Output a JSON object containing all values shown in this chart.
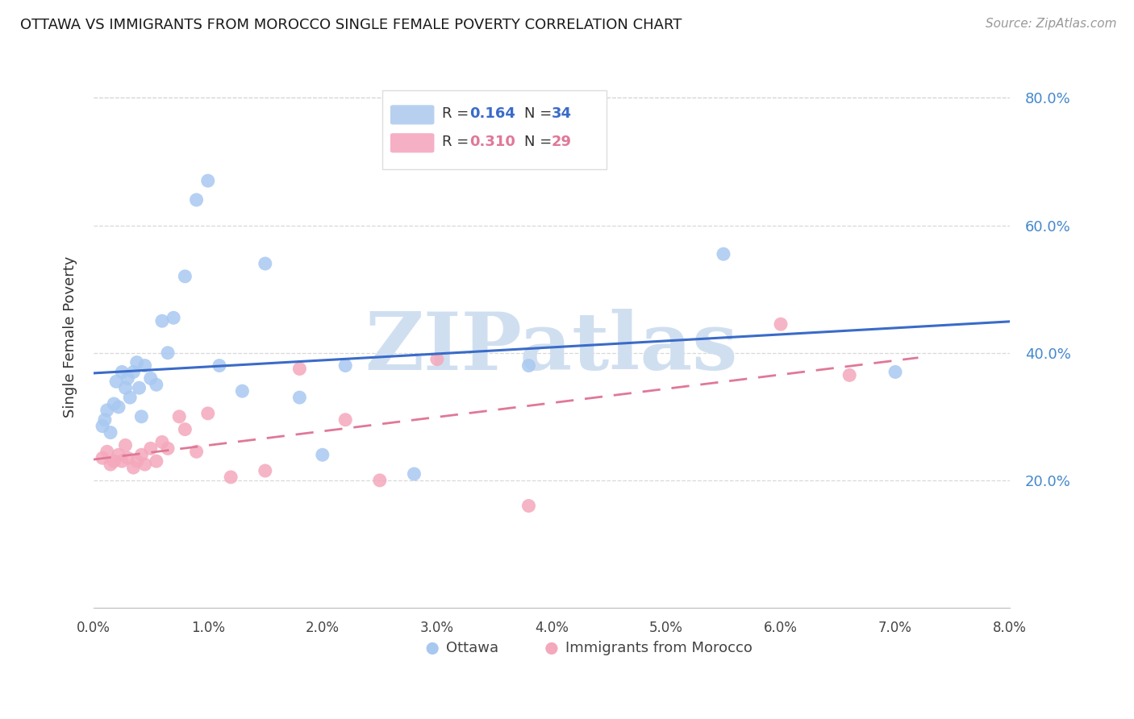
{
  "title": "OTTAWA VS IMMIGRANTS FROM MOROCCO SINGLE FEMALE POVERTY CORRELATION CHART",
  "source": "Source: ZipAtlas.com",
  "ylabel": "Single Female Poverty",
  "xlim": [
    0.0,
    0.08
  ],
  "ylim": [
    0.0,
    0.85
  ],
  "ottawa_R": 0.164,
  "ottawa_N": 34,
  "morocco_R": 0.31,
  "morocco_N": 29,
  "ottawa_color": "#a8c8f0",
  "morocco_color": "#f4a8bc",
  "ottawa_line_color": "#3a6bc8",
  "morocco_line_color": "#e07898",
  "watermark": "ZIPatlas",
  "watermark_color": "#d0dff0",
  "ottawa_x": [
    0.0008,
    0.001,
    0.0012,
    0.0015,
    0.0018,
    0.002,
    0.0022,
    0.0025,
    0.0028,
    0.003,
    0.0032,
    0.0035,
    0.0038,
    0.004,
    0.0042,
    0.0045,
    0.005,
    0.0055,
    0.006,
    0.0065,
    0.007,
    0.008,
    0.009,
    0.01,
    0.011,
    0.013,
    0.015,
    0.018,
    0.02,
    0.022,
    0.028,
    0.038,
    0.055,
    0.07
  ],
  "ottawa_y": [
    0.285,
    0.295,
    0.31,
    0.275,
    0.32,
    0.355,
    0.315,
    0.37,
    0.345,
    0.36,
    0.33,
    0.37,
    0.385,
    0.345,
    0.3,
    0.38,
    0.36,
    0.35,
    0.45,
    0.4,
    0.455,
    0.52,
    0.64,
    0.67,
    0.38,
    0.34,
    0.54,
    0.33,
    0.24,
    0.38,
    0.21,
    0.38,
    0.555,
    0.37
  ],
  "morocco_x": [
    0.0008,
    0.0012,
    0.0015,
    0.0018,
    0.0022,
    0.0025,
    0.0028,
    0.003,
    0.0035,
    0.0038,
    0.0042,
    0.0045,
    0.005,
    0.0055,
    0.006,
    0.0065,
    0.0075,
    0.008,
    0.009,
    0.01,
    0.012,
    0.015,
    0.018,
    0.022,
    0.025,
    0.03,
    0.038,
    0.06,
    0.066
  ],
  "morocco_y": [
    0.235,
    0.245,
    0.225,
    0.23,
    0.24,
    0.23,
    0.255,
    0.235,
    0.22,
    0.23,
    0.24,
    0.225,
    0.25,
    0.23,
    0.26,
    0.25,
    0.3,
    0.28,
    0.245,
    0.305,
    0.205,
    0.215,
    0.375,
    0.295,
    0.2,
    0.39,
    0.16,
    0.445,
    0.365
  ]
}
